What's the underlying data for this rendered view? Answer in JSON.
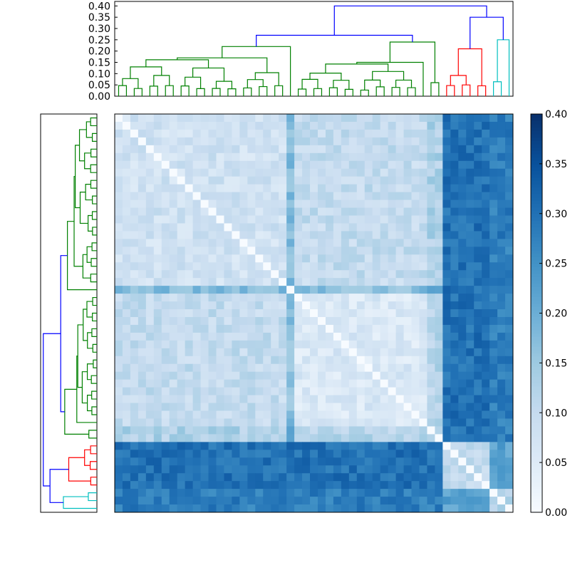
{
  "chart_data": {
    "type": "heatmap",
    "title": "",
    "xlabel": "",
    "ylabel": "",
    "n_items": 51,
    "colormap": "Blues",
    "colormap_stops": [
      "#f7fbff",
      "#deebf7",
      "#c6dbef",
      "#9ecae1",
      "#6baed6",
      "#4292c6",
      "#2171b5",
      "#08519c",
      "#08306b"
    ],
    "color_range": [
      0.0,
      0.4
    ],
    "colorbar_ticks": [
      "0.00",
      "0.05",
      "0.10",
      "0.15",
      "0.20",
      "0.25",
      "0.30",
      "0.35",
      "0.40"
    ],
    "dendrogram_ticks": [
      "0.00",
      "0.05",
      "0.10",
      "0.15",
      "0.20",
      "0.25",
      "0.30",
      "0.35",
      "0.40"
    ],
    "dendrogram_height_range": [
      0.0,
      0.42
    ],
    "cluster_colors": {
      "green": "#008000",
      "red": "#ff0000",
      "cyan": "#00bfbf",
      "link": "#0000ff"
    },
    "clusters": [
      {
        "color": "green",
        "start": 0,
        "size": 22,
        "avg_within": 0.08
      },
      {
        "color": "green",
        "start": 22,
        "size": 1,
        "avg_within": 0.22
      },
      {
        "color": "green",
        "start": 23,
        "size": 17,
        "avg_within": 0.06
      },
      {
        "color": "green",
        "start": 40,
        "size": 2,
        "avg_within": 0.12
      },
      {
        "color": "red",
        "start": 42,
        "size": 6,
        "avg_within": 0.1
      },
      {
        "color": "cyan",
        "start": 48,
        "size": 3,
        "avg_within": 0.12
      }
    ],
    "merge_heights": {
      "green_main": 0.27,
      "red": 0.21,
      "cyan": 0.25,
      "red_cyan": 0.35,
      "root": 0.4
    },
    "avg_between_green_and_red": 0.3,
    "avg_between_green_and_cyan": 0.28,
    "avg_between_red_and_cyan": 0.22
  }
}
